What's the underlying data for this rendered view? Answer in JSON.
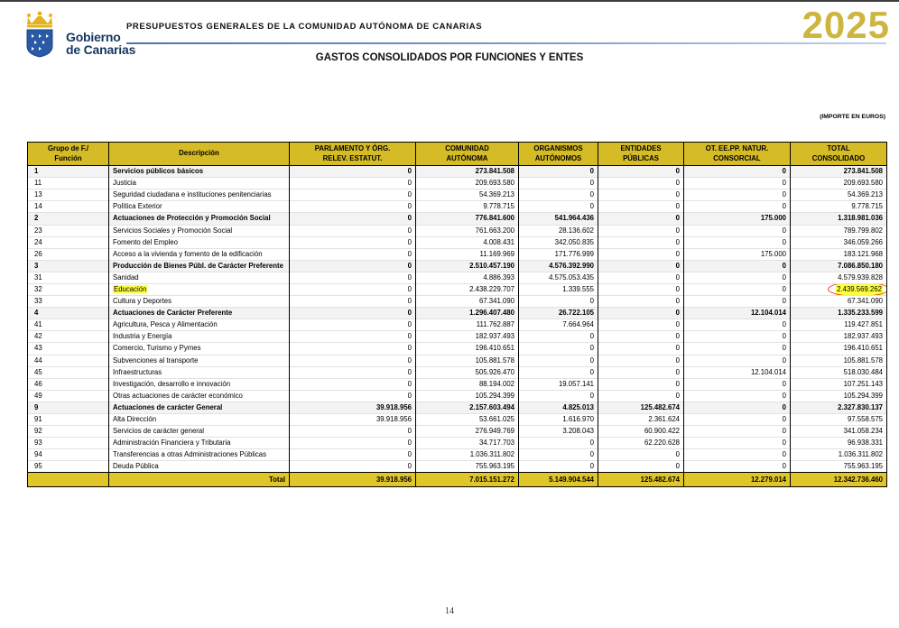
{
  "header": {
    "logo": {
      "line1": "Gobierno",
      "line2": "de Canarias"
    },
    "title": "PRESUPUESTOS GENERALES DE LA COMUNIDAD AUTÓNOMA DE CANARIAS",
    "year": "2025",
    "subtitle": "GASTOS CONSOLIDADOS POR FUNCIONES Y ENTES",
    "amount_note": "(IMPORTE EN EUROS)"
  },
  "colors": {
    "header_yellow": "#d5bb25",
    "total_row_yellow": "#e0c629",
    "highlight_yellow": "#ffff42",
    "circle_red": "#e5341f",
    "year_gold": "#cdb53f",
    "logo_navy": "#17365f",
    "line_blue": "#4a72b8"
  },
  "table": {
    "columns": [
      [
        "Grupo de F./",
        "Función"
      ],
      [
        "Descripción",
        ""
      ],
      [
        "PARLAMENTO Y ÓRG.",
        "RELEV. ESTATUT."
      ],
      [
        "COMUNIDAD",
        "AUTÓNOMA"
      ],
      [
        "ORGANISMOS",
        "AUTÓNOMOS"
      ],
      [
        "ENTIDADES",
        "PÚBLICAS"
      ],
      [
        "OT. EE.PP. NATUR.",
        "CONSORCIAL"
      ],
      [
        "TOTAL",
        "CONSOLIDADO"
      ]
    ],
    "rows": [
      {
        "code": "1",
        "desc": "Servicios públicos básicos",
        "bold": true,
        "values": [
          "0",
          "273.841.508",
          "0",
          "0",
          "0",
          "273.841.508"
        ]
      },
      {
        "code": "11",
        "desc": "Justicia",
        "bold": false,
        "values": [
          "0",
          "209.693.580",
          "0",
          "0",
          "0",
          "209.693.580"
        ]
      },
      {
        "code": "13",
        "desc": "Seguridad ciudadana e instituciones penitenciarias",
        "bold": false,
        "values": [
          "0",
          "54.369.213",
          "0",
          "0",
          "0",
          "54.369.213"
        ]
      },
      {
        "code": "14",
        "desc": "Política Exterior",
        "bold": false,
        "values": [
          "0",
          "9.778.715",
          "0",
          "0",
          "0",
          "9.778.715"
        ]
      },
      {
        "code": "2",
        "desc": "Actuaciones de Protección y Promoción Social",
        "bold": true,
        "values": [
          "0",
          "776.841.600",
          "541.964.436",
          "0",
          "175.000",
          "1.318.981.036"
        ]
      },
      {
        "code": "23",
        "desc": "Servicios Sociales y Promoción Social",
        "bold": false,
        "values": [
          "0",
          "761.663.200",
          "28.136.602",
          "0",
          "0",
          "789.799.802"
        ]
      },
      {
        "code": "24",
        "desc": "Fomento del Empleo",
        "bold": false,
        "values": [
          "0",
          "4.008.431",
          "342.050.835",
          "0",
          "0",
          "346.059.266"
        ]
      },
      {
        "code": "26",
        "desc": "Acceso a la vivienda y fomento de la edificación",
        "bold": false,
        "values": [
          "0",
          "11.169.969",
          "171.776.999",
          "0",
          "175.000",
          "183.121.968"
        ]
      },
      {
        "code": "3",
        "desc": "Producción de Bienes Públ. de Carácter Preferente",
        "bold": true,
        "values": [
          "0",
          "2.510.457.190",
          "4.576.392.990",
          "0",
          "0",
          "7.086.850.180"
        ]
      },
      {
        "code": "31",
        "desc": "Sanidad",
        "bold": false,
        "values": [
          "0",
          "4.886.393",
          "4.575.053.435",
          "0",
          "0",
          "4.579.939.828"
        ]
      },
      {
        "code": "32",
        "desc": "Educación",
        "bold": false,
        "highlight": true,
        "circled": true,
        "values": [
          "0",
          "2.438.229.707",
          "1.339.555",
          "0",
          "0",
          "2.439.569.262"
        ]
      },
      {
        "code": "33",
        "desc": "Cultura y Deportes",
        "bold": false,
        "values": [
          "0",
          "67.341.090",
          "0",
          "0",
          "0",
          "67.341.090"
        ]
      },
      {
        "code": "4",
        "desc": "Actuaciones de Carácter Preferente",
        "bold": true,
        "values": [
          "0",
          "1.296.407.480",
          "26.722.105",
          "0",
          "12.104.014",
          "1.335.233.599"
        ]
      },
      {
        "code": "41",
        "desc": "Agricultura, Pesca y Alimentación",
        "bold": false,
        "values": [
          "0",
          "111.762.887",
          "7.664.964",
          "0",
          "0",
          "119.427.851"
        ]
      },
      {
        "code": "42",
        "desc": "Industria y Energía",
        "bold": false,
        "values": [
          "0",
          "182.937.493",
          "0",
          "0",
          "0",
          "182.937.493"
        ]
      },
      {
        "code": "43",
        "desc": "Comercio, Turismo y Pymes",
        "bold": false,
        "values": [
          "0",
          "196.410.651",
          "0",
          "0",
          "0",
          "196.410.651"
        ]
      },
      {
        "code": "44",
        "desc": "Subvenciones al transporte",
        "bold": false,
        "values": [
          "0",
          "105.881.578",
          "0",
          "0",
          "0",
          "105.881.578"
        ]
      },
      {
        "code": "45",
        "desc": "Infraestructuras",
        "bold": false,
        "values": [
          "0",
          "505.926.470",
          "0",
          "0",
          "12.104.014",
          "518.030.484"
        ]
      },
      {
        "code": "46",
        "desc": "Investigación, desarrollo e innovación",
        "bold": false,
        "values": [
          "0",
          "88.194.002",
          "19.057.141",
          "0",
          "0",
          "107.251.143"
        ]
      },
      {
        "code": "49",
        "desc": "Otras actuaciones de carácter económico",
        "bold": false,
        "values": [
          "0",
          "105.294.399",
          "0",
          "0",
          "0",
          "105.294.399"
        ]
      },
      {
        "code": "9",
        "desc": "Actuaciones de carácter General",
        "bold": true,
        "values": [
          "39.918.956",
          "2.157.603.494",
          "4.825.013",
          "125.482.674",
          "0",
          "2.327.830.137"
        ]
      },
      {
        "code": "91",
        "desc": "Alta Dirección",
        "bold": false,
        "values": [
          "39.918.956",
          "53.661.025",
          "1.616.970",
          "2.361.624",
          "0",
          "97.558.575"
        ]
      },
      {
        "code": "92",
        "desc": "Servicios de carácter general",
        "bold": false,
        "values": [
          "0",
          "276.949.769",
          "3.208.043",
          "60.900.422",
          "0",
          "341.058.234"
        ]
      },
      {
        "code": "93",
        "desc": "Administración Financiera y Tributaria",
        "bold": false,
        "values": [
          "0",
          "34.717.703",
          "0",
          "62.220.628",
          "0",
          "96.938.331"
        ]
      },
      {
        "code": "94",
        "desc": "Transferencias a otras Administraciones Públicas",
        "bold": false,
        "values": [
          "0",
          "1.036.311.802",
          "0",
          "0",
          "0",
          "1.036.311.802"
        ]
      },
      {
        "code": "95",
        "desc": "Deuda Pública",
        "bold": false,
        "values": [
          "0",
          "755.963.195",
          "0",
          "0",
          "0",
          "755.963.195"
        ]
      }
    ],
    "total": {
      "label": "Total",
      "values": [
        "39.918.956",
        "7.015.151.272",
        "5.149.904.544",
        "125.482.674",
        "12.279.014",
        "12.342.736.460"
      ]
    }
  },
  "page": {
    "number": "14"
  }
}
